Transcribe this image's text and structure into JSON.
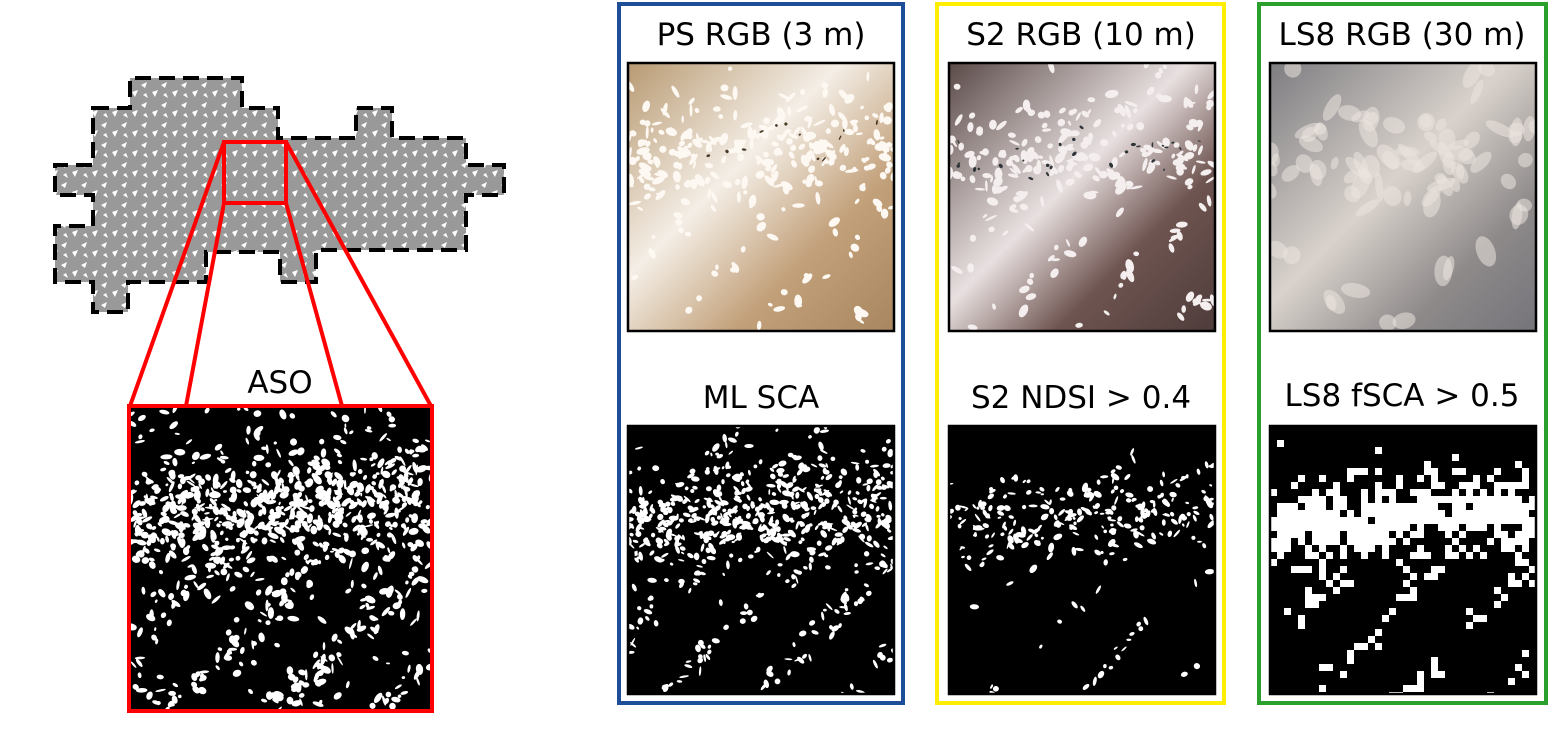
{
  "colors": {
    "overview_fill": "#999999",
    "zoom_box": "#ff0000",
    "ps_frame": "#1f4e99",
    "s2_frame": "#ffee00",
    "ls8_frame": "#2ca02c",
    "snow": "#ffffff",
    "no_snow": "#000000"
  },
  "aso": {
    "title": "ASO"
  },
  "panels": {
    "ps": {
      "rgb_title": "PS RGB (3 m)",
      "mask_title": "ML SCA"
    },
    "s2": {
      "rgb_title": "S2 RGB (10 m)",
      "mask_title": "S2 NDSI > 0.4"
    },
    "ls8": {
      "rgb_title": "LS8 RGB (30 m)",
      "mask_title": "LS8 fSCA > 0.5"
    }
  }
}
